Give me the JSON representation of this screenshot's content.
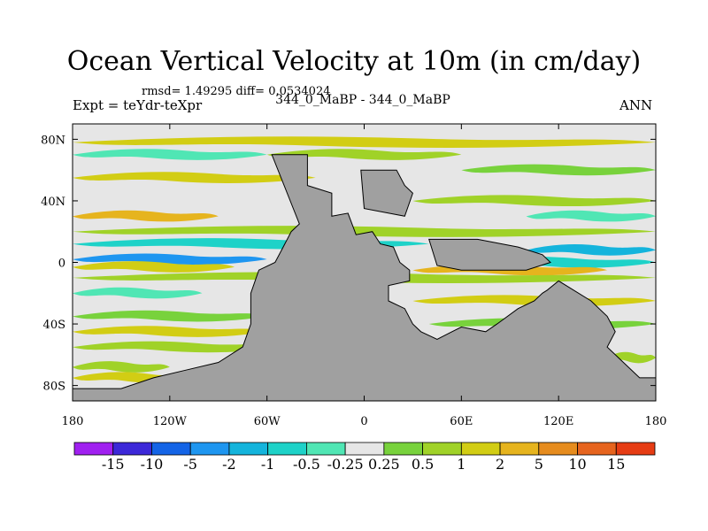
{
  "chart_data": {
    "type": "heatmap",
    "title": "Ocean Vertical Velocity at 10m (in cm/day)",
    "stats_text": "rmsd= 1.49295 diff= 0.0534024",
    "left_label": "Expt = teYdr-teXpr",
    "center_label": "344_0_MaBP - 344_0_MaBP",
    "right_label": "ANN",
    "x_range": [
      -180,
      180
    ],
    "y_range": [
      -90,
      90
    ],
    "x_ticks": [
      {
        "value": -180,
        "label": "180"
      },
      {
        "value": -120,
        "label": "120W"
      },
      {
        "value": -60,
        "label": "60W"
      },
      {
        "value": 0,
        "label": "0"
      },
      {
        "value": 60,
        "label": "60E"
      },
      {
        "value": 120,
        "label": "120E"
      },
      {
        "value": 180,
        "label": "180"
      }
    ],
    "y_ticks": [
      {
        "value": 80,
        "label": "80N"
      },
      {
        "value": 40,
        "label": "40N"
      },
      {
        "value": 0,
        "label": "0"
      },
      {
        "value": -40,
        "label": "40S"
      },
      {
        "value": -80,
        "label": "80S"
      }
    ],
    "colorbar": {
      "levels": [
        "-15",
        "-10",
        "-5",
        "-2",
        "-1",
        "-0.5",
        "-0.25",
        "0.25",
        "0.5",
        "1",
        "2",
        "5",
        "10",
        "15"
      ],
      "colors": [
        "#a020f0",
        "#3c28d8",
        "#1464e6",
        "#1e96f0",
        "#14b4dc",
        "#1ed2c8",
        "#50e6b4",
        "#e6e6e6",
        "#78d23c",
        "#a0d228",
        "#d2cd14",
        "#e6b41e",
        "#e68c1e",
        "#e6641e",
        "#e63c14"
      ]
    },
    "land_color": "#a0a0a0",
    "continents": [
      {
        "name": "main-continent",
        "points": [
          [
            -57,
            70
          ],
          [
            -35,
            70
          ],
          [
            -35,
            50
          ],
          [
            -20,
            45
          ],
          [
            -20,
            30
          ],
          [
            -10,
            32
          ],
          [
            -5,
            18
          ],
          [
            5,
            20
          ],
          [
            10,
            12
          ],
          [
            18,
            10
          ],
          [
            22,
            0
          ],
          [
            28,
            -5
          ],
          [
            28,
            -12
          ],
          [
            15,
            -15
          ],
          [
            15,
            -25
          ],
          [
            25,
            -30
          ],
          [
            30,
            -40
          ],
          [
            35,
            -45
          ],
          [
            45,
            -50
          ],
          [
            60,
            -42
          ],
          [
            75,
            -45
          ],
          [
            82,
            -40
          ],
          [
            95,
            -30
          ],
          [
            105,
            -25
          ],
          [
            110,
            -20
          ],
          [
            113,
            -18
          ],
          [
            120,
            -12
          ],
          [
            140,
            -25
          ],
          [
            150,
            -35
          ],
          [
            155,
            -45
          ],
          [
            150,
            -55
          ],
          [
            160,
            -65
          ],
          [
            170,
            -75
          ],
          [
            180,
            -75
          ],
          [
            180,
            -90
          ],
          [
            -180,
            -90
          ],
          [
            -180,
            -82
          ],
          [
            -150,
            -82
          ],
          [
            -130,
            -75
          ],
          [
            -110,
            -70
          ],
          [
            -90,
            -65
          ],
          [
            -75,
            -55
          ],
          [
            -70,
            -40
          ],
          [
            -70,
            -20
          ],
          [
            -65,
            -5
          ],
          [
            -55,
            0
          ],
          [
            -50,
            10
          ],
          [
            -45,
            20
          ],
          [
            -40,
            25
          ]
        ]
      },
      {
        "name": "north-block",
        "points": [
          [
            -2,
            60
          ],
          [
            20,
            60
          ],
          [
            25,
            50
          ],
          [
            30,
            45
          ],
          [
            25,
            30
          ],
          [
            0,
            35
          ]
        ]
      },
      {
        "name": "east-block",
        "points": [
          [
            40,
            15
          ],
          [
            70,
            15
          ],
          [
            95,
            10
          ],
          [
            110,
            5
          ],
          [
            115,
            0
          ],
          [
            100,
            -5
          ],
          [
            80,
            -5
          ],
          [
            60,
            -5
          ],
          [
            45,
            -2
          ]
        ]
      }
    ],
    "anomaly_patches": [
      {
        "lat": 78,
        "lon_from": -180,
        "lon_to": 180,
        "value": 1
      },
      {
        "lat": 70,
        "lon_from": -180,
        "lon_to": -60,
        "value": -0.5
      },
      {
        "lat": 70,
        "lon_from": -60,
        "lon_to": 60,
        "value": 0.5
      },
      {
        "lat": 60,
        "lon_from": 60,
        "lon_to": 180,
        "value": 0.25
      },
      {
        "lat": 55,
        "lon_from": -180,
        "lon_to": -30,
        "value": 1
      },
      {
        "lat": 45,
        "lon_from": -180,
        "lon_to": -20,
        "value": -0.25
      },
      {
        "lat": 40,
        "lon_from": 30,
        "lon_to": 180,
        "value": 0.5
      },
      {
        "lat": 30,
        "lon_from": -180,
        "lon_to": -90,
        "value": 2
      },
      {
        "lat": 30,
        "lon_from": 100,
        "lon_to": 180,
        "value": -0.5
      },
      {
        "lat": 20,
        "lon_from": -180,
        "lon_to": 180,
        "value": 0.5
      },
      {
        "lat": 12,
        "lon_from": -180,
        "lon_to": 40,
        "value": -1
      },
      {
        "lat": 8,
        "lon_from": 100,
        "lon_to": 180,
        "value": -2
      },
      {
        "lat": 2,
        "lon_from": -180,
        "lon_to": -60,
        "value": -5
      },
      {
        "lat": 0,
        "lon_from": 60,
        "lon_to": 180,
        "value": -1
      },
      {
        "lat": -3,
        "lon_from": -180,
        "lon_to": -80,
        "value": 1
      },
      {
        "lat": -5,
        "lon_from": 30,
        "lon_to": 150,
        "value": 2
      },
      {
        "lat": -10,
        "lon_from": -180,
        "lon_to": 180,
        "value": 0.5
      },
      {
        "lat": -20,
        "lon_from": -180,
        "lon_to": -100,
        "value": -0.5
      },
      {
        "lat": -25,
        "lon_from": 30,
        "lon_to": 180,
        "value": 1
      },
      {
        "lat": -35,
        "lon_from": -180,
        "lon_to": -60,
        "value": 0.25
      },
      {
        "lat": -40,
        "lon_from": 40,
        "lon_to": 180,
        "value": 0.25
      },
      {
        "lat": -45,
        "lon_from": -180,
        "lon_to": -60,
        "value": 1
      },
      {
        "lat": -55,
        "lon_from": -180,
        "lon_to": -50,
        "value": 0.5
      },
      {
        "lat": -60,
        "lon_from": -80,
        "lon_to": 0,
        "value": -0.5
      },
      {
        "lat": -62,
        "lon_from": 150,
        "lon_to": 180,
        "value": 0.5
      },
      {
        "lat": -68,
        "lon_from": -180,
        "lon_to": -120,
        "value": 0.5
      },
      {
        "lat": -72,
        "lon_from": -90,
        "lon_to": -40,
        "value": -1
      },
      {
        "lat": -75,
        "lon_from": -180,
        "lon_to": -100,
        "value": 1
      }
    ]
  }
}
